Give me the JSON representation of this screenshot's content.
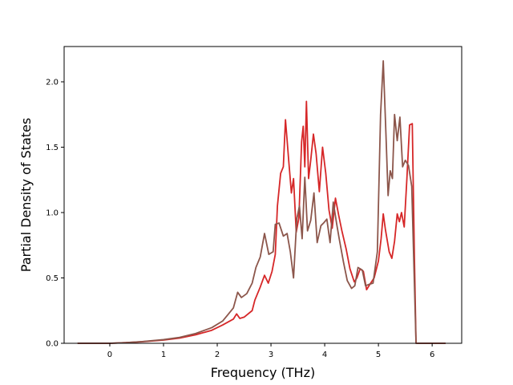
{
  "chart_data": {
    "type": "line",
    "title": "",
    "xlabel": "Frequency (THz)",
    "ylabel": "Partial Density of States",
    "xlim": [
      -0.85,
      6.55
    ],
    "ylim": [
      0.0,
      2.27
    ],
    "xticks": [
      0,
      1,
      2,
      3,
      4,
      5,
      6
    ],
    "yticks": [
      0.0,
      0.5,
      1.0,
      1.5,
      2.0
    ],
    "xtick_labels": [
      "0",
      "1",
      "2",
      "3",
      "4",
      "5",
      "6"
    ],
    "ytick_labels": [
      "0.0",
      "0.5",
      "1.0",
      "1.5",
      "2.0"
    ],
    "grid": false,
    "legend": "none",
    "series": [
      {
        "color": "#d62728",
        "points": [
          [
            -0.6,
            0.0
          ],
          [
            0.0,
            0.0
          ],
          [
            0.3,
            0.005
          ],
          [
            0.6,
            0.012
          ],
          [
            1.0,
            0.025
          ],
          [
            1.3,
            0.04
          ],
          [
            1.6,
            0.065
          ],
          [
            1.9,
            0.1
          ],
          [
            2.1,
            0.14
          ],
          [
            2.3,
            0.185
          ],
          [
            2.36,
            0.225
          ],
          [
            2.42,
            0.19
          ],
          [
            2.5,
            0.2
          ],
          [
            2.65,
            0.25
          ],
          [
            2.7,
            0.33
          ],
          [
            2.8,
            0.43
          ],
          [
            2.88,
            0.52
          ],
          [
            2.95,
            0.46
          ],
          [
            3.02,
            0.55
          ],
          [
            3.08,
            0.68
          ],
          [
            3.12,
            1.05
          ],
          [
            3.18,
            1.3
          ],
          [
            3.23,
            1.35
          ],
          [
            3.27,
            1.71
          ],
          [
            3.33,
            1.4
          ],
          [
            3.38,
            1.15
          ],
          [
            3.42,
            1.26
          ],
          [
            3.47,
            0.85
          ],
          [
            3.52,
            0.96
          ],
          [
            3.57,
            1.54
          ],
          [
            3.6,
            1.66
          ],
          [
            3.63,
            1.35
          ],
          [
            3.66,
            1.85
          ],
          [
            3.7,
            1.26
          ],
          [
            3.74,
            1.4
          ],
          [
            3.79,
            1.6
          ],
          [
            3.84,
            1.45
          ],
          [
            3.9,
            1.16
          ],
          [
            3.96,
            1.5
          ],
          [
            4.02,
            1.3
          ],
          [
            4.08,
            1.02
          ],
          [
            4.14,
            0.88
          ],
          [
            4.2,
            1.11
          ],
          [
            4.26,
            0.98
          ],
          [
            4.32,
            0.86
          ],
          [
            4.4,
            0.72
          ],
          [
            4.47,
            0.57
          ],
          [
            4.55,
            0.47
          ],
          [
            4.6,
            0.5
          ],
          [
            4.66,
            0.57
          ],
          [
            4.72,
            0.55
          ],
          [
            4.78,
            0.41
          ],
          [
            4.84,
            0.45
          ],
          [
            4.92,
            0.5
          ],
          [
            5.0,
            0.63
          ],
          [
            5.05,
            0.8
          ],
          [
            5.09,
            0.99
          ],
          [
            5.13,
            0.87
          ],
          [
            5.2,
            0.7
          ],
          [
            5.25,
            0.65
          ],
          [
            5.3,
            0.78
          ],
          [
            5.35,
            0.99
          ],
          [
            5.39,
            0.93
          ],
          [
            5.43,
            1.0
          ],
          [
            5.48,
            0.89
          ],
          [
            5.53,
            1.26
          ],
          [
            5.58,
            1.67
          ],
          [
            5.63,
            1.68
          ],
          [
            5.67,
            0.65
          ],
          [
            5.7,
            0.0
          ],
          [
            6.25,
            0.0
          ]
        ]
      },
      {
        "color": "#8c564b",
        "points": [
          [
            -0.6,
            0.0
          ],
          [
            0.0,
            0.0
          ],
          [
            0.3,
            0.005
          ],
          [
            0.6,
            0.013
          ],
          [
            1.0,
            0.028
          ],
          [
            1.3,
            0.045
          ],
          [
            1.6,
            0.075
          ],
          [
            1.9,
            0.12
          ],
          [
            2.1,
            0.17
          ],
          [
            2.2,
            0.22
          ],
          [
            2.3,
            0.27
          ],
          [
            2.38,
            0.39
          ],
          [
            2.45,
            0.35
          ],
          [
            2.55,
            0.38
          ],
          [
            2.65,
            0.46
          ],
          [
            2.72,
            0.58
          ],
          [
            2.8,
            0.66
          ],
          [
            2.88,
            0.84
          ],
          [
            2.96,
            0.68
          ],
          [
            3.04,
            0.7
          ],
          [
            3.08,
            0.91
          ],
          [
            3.15,
            0.92
          ],
          [
            3.23,
            0.82
          ],
          [
            3.3,
            0.84
          ],
          [
            3.36,
            0.7
          ],
          [
            3.42,
            0.5
          ],
          [
            3.48,
            0.95
          ],
          [
            3.53,
            1.05
          ],
          [
            3.58,
            0.8
          ],
          [
            3.63,
            1.27
          ],
          [
            3.68,
            0.86
          ],
          [
            3.74,
            0.94
          ],
          [
            3.8,
            1.15
          ],
          [
            3.86,
            0.77
          ],
          [
            3.93,
            0.9
          ],
          [
            3.98,
            0.92
          ],
          [
            4.04,
            0.95
          ],
          [
            4.1,
            0.77
          ],
          [
            4.16,
            1.08
          ],
          [
            4.22,
            0.92
          ],
          [
            4.27,
            0.8
          ],
          [
            4.35,
            0.62
          ],
          [
            4.42,
            0.48
          ],
          [
            4.5,
            0.42
          ],
          [
            4.56,
            0.44
          ],
          [
            4.62,
            0.58
          ],
          [
            4.7,
            0.56
          ],
          [
            4.76,
            0.44
          ],
          [
            4.82,
            0.45
          ],
          [
            4.9,
            0.46
          ],
          [
            4.98,
            0.7
          ],
          [
            5.04,
            1.75
          ],
          [
            5.09,
            2.16
          ],
          [
            5.14,
            1.6
          ],
          [
            5.18,
            1.13
          ],
          [
            5.22,
            1.32
          ],
          [
            5.26,
            1.26
          ],
          [
            5.3,
            1.75
          ],
          [
            5.35,
            1.55
          ],
          [
            5.4,
            1.73
          ],
          [
            5.45,
            1.35
          ],
          [
            5.5,
            1.4
          ],
          [
            5.56,
            1.36
          ],
          [
            5.62,
            1.2
          ],
          [
            5.66,
            0.6
          ],
          [
            5.7,
            0.0
          ],
          [
            6.25,
            0.0
          ]
        ]
      }
    ]
  }
}
